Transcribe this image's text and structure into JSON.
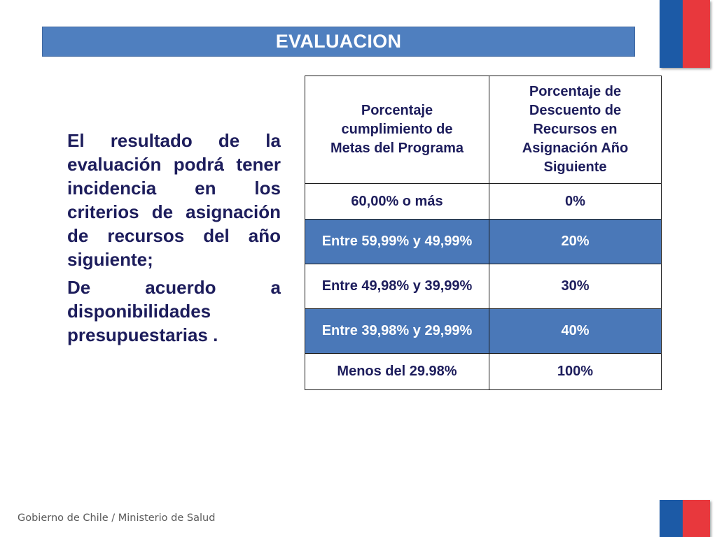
{
  "colors": {
    "title_bar_bg": "#4f7fbf",
    "shaded_row_bg": "#4a78b8",
    "text_dark": "#1d1d5c",
    "flag_blue": "#1c5aa6",
    "flag_red": "#e8383d"
  },
  "title": "EVALUACION",
  "body": {
    "paragraph_1": "El resultado de la evaluación podrá tener incidencia en los criterios de asignación de recursos del año siguiente;",
    "paragraph_2": "De acuerdo a disponibilidades presupuestarias ."
  },
  "table": {
    "headers": [
      "Porcentaje cumplimiento de Metas del Programa",
      "Porcentaje de Descuento de Recursos en Asignación Año Siguiente"
    ],
    "rows": [
      {
        "range": "60,00% o más",
        "discount": "0%",
        "shaded": false
      },
      {
        "range": "Entre 59,99% y 49,99%",
        "discount": "20%",
        "shaded": true
      },
      {
        "range": "Entre 49,98% y 39,99%",
        "discount": "30%",
        "shaded": false
      },
      {
        "range": "Entre 39,98% y 29,99%",
        "discount": "40%",
        "shaded": true
      },
      {
        "range": "Menos del 29.98%",
        "discount": "100%",
        "shaded": false
      }
    ]
  },
  "footer": "Gobierno de Chile / Ministerio de Salud"
}
